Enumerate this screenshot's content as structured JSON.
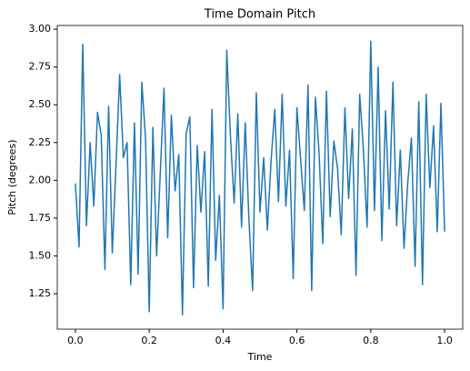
{
  "chart_data": {
    "type": "line",
    "title": "Time Domain Pitch",
    "xlabel": "Time",
    "ylabel": "Pitch (degrees)",
    "x": [
      0,
      0.01,
      0.02,
      0.03,
      0.04,
      0.05,
      0.06,
      0.07,
      0.08,
      0.09,
      0.1,
      0.11,
      0.12,
      0.13,
      0.14,
      0.15,
      0.16,
      0.17,
      0.18,
      0.19,
      0.2,
      0.21,
      0.22,
      0.23,
      0.24,
      0.25,
      0.26,
      0.27,
      0.28,
      0.29,
      0.3,
      0.31,
      0.32,
      0.33,
      0.34,
      0.35,
      0.36,
      0.37,
      0.38,
      0.39,
      0.4,
      0.41,
      0.42,
      0.43,
      0.44,
      0.45,
      0.46,
      0.47,
      0.48,
      0.49,
      0.5,
      0.51,
      0.52,
      0.53,
      0.54,
      0.55,
      0.56,
      0.57,
      0.58,
      0.59,
      0.6,
      0.61,
      0.62,
      0.63,
      0.64,
      0.65,
      0.66,
      0.67,
      0.68,
      0.69,
      0.7,
      0.71,
      0.72,
      0.73,
      0.74,
      0.75,
      0.76,
      0.77,
      0.78,
      0.79,
      0.8,
      0.81,
      0.82,
      0.83,
      0.84,
      0.85,
      0.86,
      0.87,
      0.88,
      0.89,
      0.9,
      0.91,
      0.92,
      0.93,
      0.94,
      0.95,
      0.96,
      0.97,
      0.98,
      0.99,
      1
    ],
    "series": [
      {
        "color": "#1f77b4",
        "values": [
          1.98,
          1.56,
          2.9,
          1.7,
          2.25,
          1.83,
          2.45,
          2.3,
          1.41,
          2.49,
          1.52,
          2.1,
          2.7,
          2.15,
          2.25,
          1.31,
          2.38,
          1.38,
          2.65,
          2.28,
          1.13,
          2.35,
          1.5,
          2.05,
          2.61,
          1.62,
          2.43,
          1.93,
          2.17,
          1.11,
          2.31,
          2.42,
          1.29,
          2.23,
          1.79,
          2.19,
          1.3,
          2.47,
          1.47,
          1.9,
          1.15,
          2.86,
          2.29,
          1.85,
          2.44,
          1.69,
          2.38,
          1.74,
          1.27,
          2.58,
          1.79,
          2.15,
          1.67,
          2.13,
          2.47,
          1.86,
          2.57,
          1.83,
          2.2,
          1.35,
          2.48,
          2.14,
          1.8,
          2.63,
          1.27,
          2.55,
          2.18,
          1.58,
          2.59,
          1.76,
          2.26,
          2.08,
          1.64,
          2.48,
          1.88,
          2.34,
          1.37,
          2.57,
          2.2,
          1.69,
          2.92,
          1.8,
          2.75,
          1.6,
          2.46,
          1.81,
          2.65,
          1.7,
          2.2,
          1.55,
          1.98,
          2.28,
          1.43,
          2.52,
          1.31,
          2.57,
          1.95,
          2.36,
          1.66,
          2.51,
          1.66
        ]
      }
    ],
    "xlim": [
      -0.049,
      1.049
    ],
    "xticks": [
      {
        "value": 0,
        "label": "0.0"
      },
      0.2,
      0.4,
      0.6,
      0.8,
      {
        "value": 1,
        "label": "1.0"
      }
    ],
    "ylim": [
      1.015,
      3.025
    ],
    "yticks": [
      1.25,
      {
        "value": 1.5,
        "label": "1.50"
      },
      1.75,
      {
        "value": 2,
        "label": "2.00"
      },
      2.25,
      {
        "value": 2.5,
        "label": "2.50"
      },
      2.75,
      {
        "value": 3,
        "label": "3.00"
      }
    ]
  }
}
